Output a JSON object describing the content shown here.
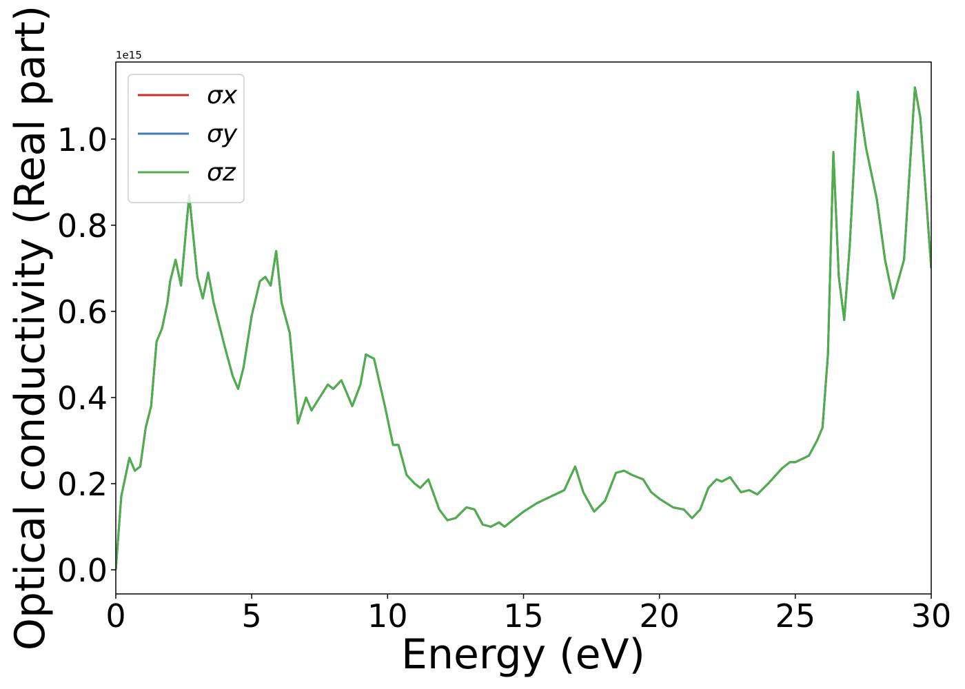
{
  "chart_data": {
    "type": "line",
    "xlabel": "Energy (eV)",
    "ylabel": "Optical conductivity (Real part)",
    "y_offset_label": "1e15",
    "legend": "upper left",
    "xlim": [
      0,
      30
    ],
    "xticks": [
      0,
      5,
      10,
      15,
      20,
      25,
      30
    ],
    "ylim": [
      -0.056,
      1.179
    ],
    "yticks": [
      {
        "value": 0,
        "label": "0.0"
      },
      {
        "value": 0.2,
        "label": "0.2"
      },
      {
        "value": 0.4,
        "label": "0.4"
      },
      {
        "value": 0.6,
        "label": "0.6"
      },
      {
        "value": 0.8,
        "label": "0.8"
      },
      {
        "value": 1.0,
        "label": "1.0"
      }
    ],
    "x": [
      0,
      0.2,
      0.5,
      0.7,
      0.9,
      1.1,
      1.3,
      1.5,
      1.7,
      1.9,
      2.0,
      2.2,
      2.4,
      2.7,
      3.0,
      3.2,
      3.4,
      3.6,
      4.0,
      4.3,
      4.5,
      4.7,
      5.0,
      5.3,
      5.5,
      5.7,
      5.9,
      6.1,
      6.4,
      6.7,
      7.0,
      7.2,
      7.5,
      7.8,
      8.0,
      8.3,
      8.7,
      9.0,
      9.2,
      9.5,
      9.9,
      10.2,
      10.4,
      10.7,
      11.0,
      11.2,
      11.5,
      11.9,
      12.2,
      12.5,
      12.9,
      13.2,
      13.5,
      13.8,
      14.1,
      14.3,
      14.7,
      15.0,
      15.5,
      16.0,
      16.5,
      16.9,
      17.2,
      17.6,
      18.0,
      18.4,
      18.7,
      19.0,
      19.4,
      19.7,
      20.0,
      20.5,
      20.9,
      21.2,
      21.5,
      21.8,
      22.1,
      22.3,
      22.6,
      23.0,
      23.3,
      23.6,
      24.0,
      24.5,
      24.8,
      25.0,
      25.5,
      25.8,
      26.0,
      26.2,
      26.4,
      26.6,
      26.8,
      27.0,
      27.3,
      27.6,
      28.0,
      28.3,
      28.6,
      29.0,
      29.4,
      29.6,
      30.0
    ],
    "series": [
      {
        "name": "σx",
        "color": "#d62728",
        "values": [
          0,
          0.17,
          0.26,
          0.23,
          0.24,
          0.33,
          0.38,
          0.53,
          0.56,
          0.62,
          0.67,
          0.72,
          0.66,
          0.87,
          0.68,
          0.63,
          0.69,
          0.62,
          0.52,
          0.45,
          0.42,
          0.47,
          0.59,
          0.67,
          0.68,
          0.66,
          0.74,
          0.62,
          0.55,
          0.34,
          0.4,
          0.37,
          0.4,
          0.43,
          0.42,
          0.44,
          0.38,
          0.43,
          0.5,
          0.49,
          0.38,
          0.29,
          0.29,
          0.22,
          0.2,
          0.19,
          0.21,
          0.14,
          0.115,
          0.12,
          0.145,
          0.14,
          0.105,
          0.1,
          0.11,
          0.1,
          0.12,
          0.135,
          0.155,
          0.17,
          0.185,
          0.24,
          0.18,
          0.135,
          0.16,
          0.225,
          0.23,
          0.22,
          0.21,
          0.18,
          0.165,
          0.145,
          0.14,
          0.12,
          0.14,
          0.19,
          0.21,
          0.205,
          0.215,
          0.18,
          0.185,
          0.175,
          0.2,
          0.235,
          0.25,
          0.25,
          0.265,
          0.3,
          0.33,
          0.5,
          0.97,
          0.68,
          0.58,
          0.75,
          1.11,
          0.98,
          0.86,
          0.72,
          0.63,
          0.72,
          1.12,
          1.05,
          0.7
        ]
      },
      {
        "name": "σy",
        "color": "#3a7dba",
        "values": [
          0,
          0.17,
          0.26,
          0.23,
          0.24,
          0.33,
          0.38,
          0.53,
          0.56,
          0.62,
          0.67,
          0.72,
          0.66,
          0.87,
          0.68,
          0.63,
          0.69,
          0.62,
          0.52,
          0.45,
          0.42,
          0.47,
          0.59,
          0.67,
          0.68,
          0.66,
          0.74,
          0.62,
          0.55,
          0.34,
          0.4,
          0.37,
          0.4,
          0.43,
          0.42,
          0.44,
          0.38,
          0.43,
          0.5,
          0.49,
          0.38,
          0.29,
          0.29,
          0.22,
          0.2,
          0.19,
          0.21,
          0.14,
          0.115,
          0.12,
          0.145,
          0.14,
          0.105,
          0.1,
          0.11,
          0.1,
          0.12,
          0.135,
          0.155,
          0.17,
          0.185,
          0.24,
          0.18,
          0.135,
          0.16,
          0.225,
          0.23,
          0.22,
          0.21,
          0.18,
          0.165,
          0.145,
          0.14,
          0.12,
          0.14,
          0.19,
          0.21,
          0.205,
          0.215,
          0.18,
          0.185,
          0.175,
          0.2,
          0.235,
          0.25,
          0.25,
          0.265,
          0.3,
          0.33,
          0.5,
          0.97,
          0.68,
          0.58,
          0.75,
          1.11,
          0.98,
          0.86,
          0.72,
          0.63,
          0.72,
          1.12,
          1.05,
          0.7
        ]
      },
      {
        "name": "σz",
        "color": "#4daf4a",
        "values": [
          0,
          0.17,
          0.26,
          0.23,
          0.24,
          0.33,
          0.38,
          0.53,
          0.56,
          0.62,
          0.67,
          0.72,
          0.66,
          0.87,
          0.68,
          0.63,
          0.69,
          0.62,
          0.52,
          0.45,
          0.42,
          0.47,
          0.59,
          0.67,
          0.68,
          0.66,
          0.74,
          0.62,
          0.55,
          0.34,
          0.4,
          0.37,
          0.4,
          0.43,
          0.42,
          0.44,
          0.38,
          0.43,
          0.5,
          0.49,
          0.38,
          0.29,
          0.29,
          0.22,
          0.2,
          0.19,
          0.21,
          0.14,
          0.115,
          0.12,
          0.145,
          0.14,
          0.105,
          0.1,
          0.11,
          0.1,
          0.12,
          0.135,
          0.155,
          0.17,
          0.185,
          0.24,
          0.18,
          0.135,
          0.16,
          0.225,
          0.23,
          0.22,
          0.21,
          0.18,
          0.165,
          0.145,
          0.14,
          0.12,
          0.14,
          0.19,
          0.21,
          0.205,
          0.215,
          0.18,
          0.185,
          0.175,
          0.2,
          0.235,
          0.25,
          0.25,
          0.265,
          0.3,
          0.33,
          0.5,
          0.97,
          0.68,
          0.58,
          0.75,
          1.11,
          0.98,
          0.86,
          0.72,
          0.63,
          0.72,
          1.12,
          1.05,
          0.7
        ]
      }
    ]
  }
}
